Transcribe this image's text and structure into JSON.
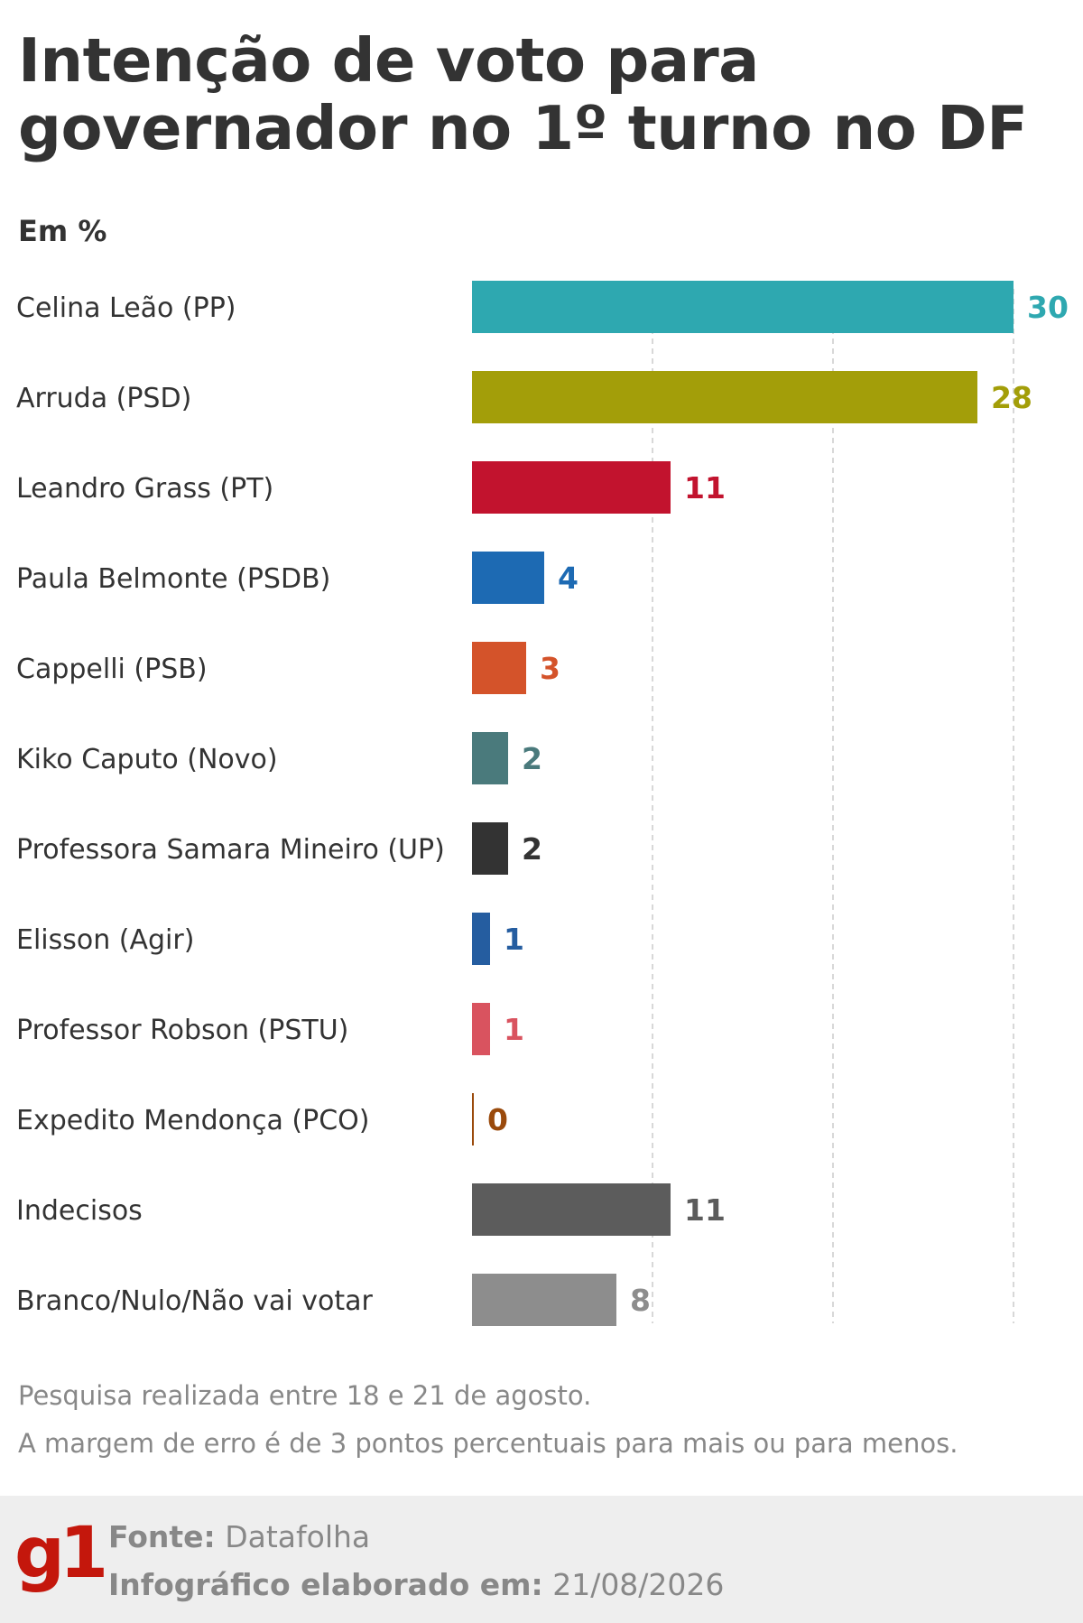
{
  "title_line1": "Intenção de voto para",
  "title_line2": "governador no 1º turno no DF",
  "subtitle": "Em %",
  "chart_data": {
    "type": "bar",
    "orientation": "horizontal",
    "unit": "%",
    "xlim": [
      0,
      30
    ],
    "grid": true,
    "categories": [
      "Celina Leão (PP)",
      "Arruda (PSD)",
      "Leandro Grass (PT)",
      "Paula Belmonte (PSDB)",
      "Cappelli (PSB)",
      "Kiko Caputo (Novo)",
      "Professora Samara Mineiro (UP)",
      "Elisson (Agir)",
      "Professor Robson (PSTU)",
      "Expedito Mendonça (PCO)",
      "Indecisos",
      "Branco/Nulo/Não vai votar"
    ],
    "values": [
      30,
      28,
      11,
      4,
      3,
      2,
      2,
      1,
      1,
      0,
      11,
      8
    ],
    "colors": [
      "#2ea8b0",
      "#a39e09",
      "#c2132e",
      "#1d6ab3",
      "#d4532a",
      "#4a7a7c",
      "#333333",
      "#255da0",
      "#d9535f",
      "#9a4a0c",
      "#5c5c5c",
      "#8d8d8d"
    ]
  },
  "notes": {
    "line1": "Pesquisa realizada entre 18 e 21 de agosto.",
    "line2": "A margem de erro é de 3 pontos percentuais para mais ou para menos."
  },
  "footer": {
    "logo": "g1",
    "source_label": "Fonte:",
    "source_value": "Datafolha",
    "date_label": "Infográfico elaborado em:",
    "date_value": "21/08/2026"
  }
}
